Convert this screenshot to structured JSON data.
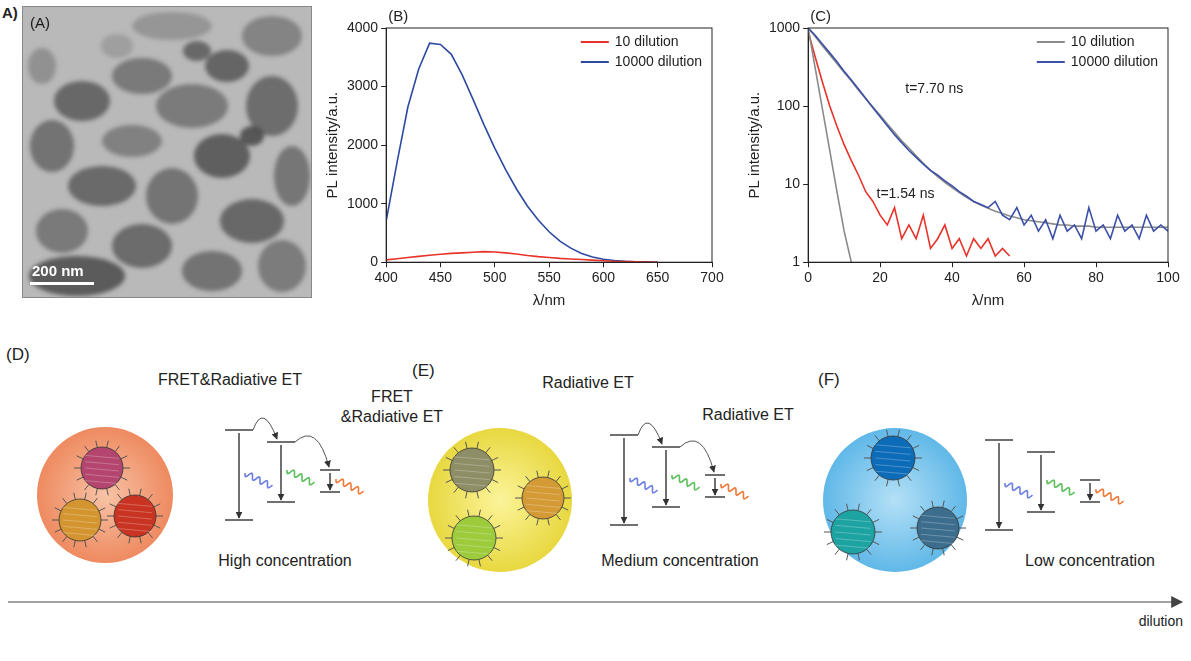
{
  "figure_tag": "A)",
  "tem_image": {
    "label": "(A)",
    "scale_bar": "200 nm"
  },
  "chart_data": [
    {
      "type": "line",
      "title": "(B)",
      "x_label": "λ/nm",
      "y_label": "PL intensity/a.u.",
      "x": [
        400,
        410,
        420,
        430,
        440,
        450,
        460,
        470,
        480,
        490,
        500,
        510,
        520,
        530,
        540,
        550,
        560,
        570,
        580,
        590,
        600,
        610,
        620,
        630,
        640,
        650
      ],
      "series": [
        {
          "name": "10 dilution",
          "color": "#e8332a",
          "values": [
            40,
            60,
            80,
            100,
            120,
            135,
            150,
            160,
            170,
            180,
            175,
            160,
            140,
            115,
            95,
            80,
            65,
            55,
            45,
            35,
            25,
            15,
            10,
            5,
            2,
            0
          ]
        },
        {
          "name": "10000 dilution",
          "color": "#2c4aa0",
          "values": [
            700,
            1700,
            2650,
            3300,
            3740,
            3720,
            3550,
            3200,
            2780,
            2350,
            1950,
            1580,
            1250,
            960,
            720,
            520,
            360,
            240,
            150,
            90,
            50,
            28,
            15,
            8,
            3,
            0
          ]
        }
      ],
      "xlim": [
        400,
        700
      ],
      "xticks": [
        400,
        450,
        500,
        550,
        600,
        650,
        700
      ],
      "ylim": [
        0,
        4000
      ],
      "yticks": [
        0,
        1000,
        2000,
        3000,
        4000
      ],
      "legend": "upper right",
      "grid": false
    },
    {
      "type": "line",
      "title": "(C)",
      "x_label": "λ/nm",
      "y_label": "PL intensity/a.u.",
      "log": "y",
      "x": [
        0,
        2,
        4,
        6,
        8,
        10,
        12,
        14,
        16,
        18,
        20,
        22,
        24,
        26,
        28,
        30,
        32,
        34,
        36,
        38,
        40,
        42,
        44,
        46,
        48,
        50,
        52,
        54,
        56,
        58,
        60,
        62,
        64,
        66,
        68,
        70,
        72,
        74,
        76,
        78,
        80,
        82,
        84,
        86,
        88,
        90,
        92,
        94,
        96,
        98,
        100
      ],
      "series": [
        {
          "name": "10 dilution",
          "color": "#8a8a8a",
          "values": [
            1000,
            300,
            90,
            27,
            8,
            2.5,
            1,
            null,
            null,
            null,
            null,
            null,
            null,
            null,
            null,
            null,
            null,
            null,
            null,
            null,
            null,
            null,
            null,
            null,
            null,
            null,
            null,
            null,
            null,
            null,
            null,
            null,
            null,
            null,
            null,
            null,
            null,
            null,
            null,
            null,
            null,
            null,
            null,
            null,
            null,
            null,
            null,
            null,
            null,
            null,
            null
          ]
        },
        {
          "name": "10000 dilution",
          "color": "#3c4fa8",
          "values": [
            1000,
            800,
            620,
            480,
            370,
            280,
            215,
            165,
            125,
            95,
            73,
            56,
            43,
            34,
            27,
            22,
            18,
            15,
            13,
            11,
            9.5,
            8,
            7,
            6,
            5.5,
            5,
            6,
            4,
            3.5,
            5,
            3,
            4,
            2.5,
            3.5,
            2,
            4,
            2.5,
            3,
            2,
            5,
            2.5,
            3,
            2,
            4,
            2.5,
            3,
            2,
            4,
            2.5,
            3,
            2.5
          ]
        },
        {
          "color": "#e8332a",
          "values": [
            900,
            420,
            200,
            100,
            55,
            32,
            20,
            13,
            8,
            6,
            4,
            3,
            5,
            2,
            3,
            2,
            4,
            1.5,
            2,
            3,
            1.5,
            2,
            1.2,
            2,
            1.5,
            2,
            1.2,
            1.5,
            1.2,
            null,
            null,
            null,
            null,
            null,
            null,
            null,
            null,
            null,
            null,
            null,
            null,
            null,
            null,
            null,
            null,
            null,
            null,
            null,
            null,
            null,
            null
          ]
        },
        {
          "color": "#8a8a8a",
          "values": [
            1000,
            770,
            590,
            455,
            350,
            270,
            210,
            160,
            125,
            97,
            76,
            59,
            46,
            36,
            29,
            23,
            18.5,
            15,
            12.5,
            10.5,
            9,
            7.8,
            6.8,
            6,
            5.4,
            4.9,
            4.5,
            4.2,
            3.9,
            3.7,
            3.5,
            3.4,
            3.3,
            3.2,
            3.1,
            3,
            3,
            2.9,
            2.9,
            2.9,
            2.8,
            2.8,
            2.8,
            2.8,
            2.8,
            2.8,
            2.8,
            2.8,
            2.8,
            2.8,
            2.8
          ]
        }
      ],
      "xlim": [
        0,
        100
      ],
      "xticks": [
        0,
        20,
        40,
        60,
        80,
        100
      ],
      "ylim": [
        1,
        1000
      ],
      "yticks": [
        1,
        10,
        100,
        1000
      ],
      "annotations": [
        "t=7.70 ns",
        "t=1.54 ns"
      ],
      "legend": "upper right",
      "grid": false
    }
  ],
  "schematics": [
    {
      "label": "(D)",
      "transfers": [
        [
          "FRET&Radiative ET"
        ],
        [
          "FRET",
          "&Radiative ET"
        ]
      ],
      "caption": "High concentration"
    },
    {
      "label": "(E)",
      "transfers": [
        [
          "Radiative ET"
        ],
        [
          "Radiative ET"
        ]
      ],
      "caption": "Medium concentration"
    },
    {
      "label": "(F)",
      "transfers": [],
      "caption": "Low concentration"
    }
  ],
  "dilution_arrow": "dilution"
}
